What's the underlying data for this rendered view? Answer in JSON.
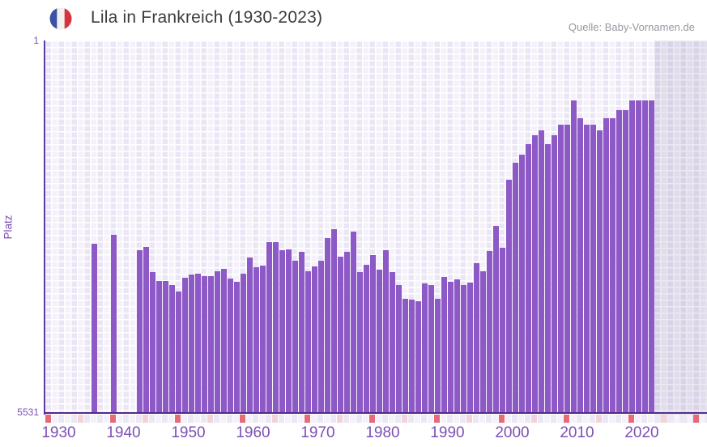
{
  "header": {
    "title": "Lila in Frankreich (1930-2023)",
    "source": "Quelle: Baby-Vornamen.de",
    "flag_icon": "french-flag-icon",
    "flag_colors": [
      "#3b51a3",
      "#f2f1ef",
      "#d6333f"
    ]
  },
  "chart_data": {
    "type": "bar",
    "title": "Lila in Frankreich (1930-2023)",
    "xlabel": "",
    "ylabel": "Platz",
    "legend": "none",
    "grid": "on",
    "yaxis": {
      "scale": "log",
      "min": 1,
      "max": 5531,
      "inverted": true,
      "tick_top": "1",
      "tick_bottom": "5531"
    },
    "xaxis": {
      "range_start": 1930,
      "range_end": 2031,
      "tick_years": [
        1930,
        1940,
        1950,
        1960,
        1970,
        1980,
        1990,
        2000,
        2010,
        2020
      ],
      "half_decade_marks": [
        1935,
        1945,
        1955,
        1965,
        1975,
        1985,
        1995,
        2005,
        2015,
        2025
      ]
    },
    "colors": {
      "bar": "#8d59c6",
      "axis": "#5b3a9e",
      "tick_label": "#7c50b4",
      "decade_cell": "#e56b77",
      "half_decade_cell": "#f2d2db",
      "cell_even": "#ece7f5",
      "cell_odd": "#f4f1fa"
    },
    "points": [
      {
        "year": 1937,
        "rank": 111
      },
      {
        "year": 1940,
        "rank": 89
      },
      {
        "year": 1944,
        "rank": 129
      },
      {
        "year": 1945,
        "rank": 118
      },
      {
        "year": 1946,
        "rank": 214
      },
      {
        "year": 1947,
        "rank": 260
      },
      {
        "year": 1948,
        "rank": 260
      },
      {
        "year": 1949,
        "rank": 285
      },
      {
        "year": 1950,
        "rank": 333
      },
      {
        "year": 1951,
        "rank": 244
      },
      {
        "year": 1952,
        "rank": 226
      },
      {
        "year": 1953,
        "rank": 219
      },
      {
        "year": 1954,
        "rank": 233
      },
      {
        "year": 1955,
        "rank": 233
      },
      {
        "year": 1956,
        "rank": 208
      },
      {
        "year": 1957,
        "rank": 198
      },
      {
        "year": 1958,
        "rank": 247
      },
      {
        "year": 1959,
        "rank": 264
      },
      {
        "year": 1960,
        "rank": 219
      },
      {
        "year": 1961,
        "rank": 152
      },
      {
        "year": 1962,
        "rank": 190
      },
      {
        "year": 1963,
        "rank": 182
      },
      {
        "year": 1964,
        "rank": 107
      },
      {
        "year": 1965,
        "rank": 107
      },
      {
        "year": 1966,
        "rank": 129
      },
      {
        "year": 1967,
        "rank": 126
      },
      {
        "year": 1968,
        "rank": 162
      },
      {
        "year": 1969,
        "rank": 132
      },
      {
        "year": 1970,
        "rank": 208
      },
      {
        "year": 1971,
        "rank": 187
      },
      {
        "year": 1972,
        "rank": 164
      },
      {
        "year": 1973,
        "rank": 97
      },
      {
        "year": 1974,
        "rank": 79
      },
      {
        "year": 1975,
        "rank": 148
      },
      {
        "year": 1976,
        "rank": 132
      },
      {
        "year": 1977,
        "rank": 84
      },
      {
        "year": 1978,
        "rank": 212
      },
      {
        "year": 1979,
        "rank": 178
      },
      {
        "year": 1980,
        "rank": 143
      },
      {
        "year": 1981,
        "rank": 200
      },
      {
        "year": 1982,
        "rank": 128
      },
      {
        "year": 1983,
        "rank": 212
      },
      {
        "year": 1984,
        "rank": 288
      },
      {
        "year": 1985,
        "rank": 392
      },
      {
        "year": 1986,
        "rank": 399
      },
      {
        "year": 1987,
        "rank": 414
      },
      {
        "year": 1988,
        "rank": 276
      },
      {
        "year": 1989,
        "rank": 285
      },
      {
        "year": 1990,
        "rank": 396
      },
      {
        "year": 1991,
        "rank": 239
      },
      {
        "year": 1992,
        "rank": 267
      },
      {
        "year": 1993,
        "rank": 250
      },
      {
        "year": 1994,
        "rank": 288
      },
      {
        "year": 1995,
        "rank": 269
      },
      {
        "year": 1996,
        "rank": 174
      },
      {
        "year": 1997,
        "rank": 208
      },
      {
        "year": 1998,
        "rank": 130
      },
      {
        "year": 1999,
        "rank": 73
      },
      {
        "year": 2000,
        "rank": 121
      },
      {
        "year": 2001,
        "rank": 25
      },
      {
        "year": 2002,
        "rank": 17
      },
      {
        "year": 2003,
        "rank": 14
      },
      {
        "year": 2004,
        "rank": 11
      },
      {
        "year": 2005,
        "rank": 9
      },
      {
        "year": 2006,
        "rank": 8
      },
      {
        "year": 2007,
        "rank": 11
      },
      {
        "year": 2008,
        "rank": 9
      },
      {
        "year": 2009,
        "rank": 7
      },
      {
        "year": 2010,
        "rank": 7
      },
      {
        "year": 2011,
        "rank": 4
      },
      {
        "year": 2012,
        "rank": 6
      },
      {
        "year": 2013,
        "rank": 7
      },
      {
        "year": 2014,
        "rank": 7
      },
      {
        "year": 2015,
        "rank": 8
      },
      {
        "year": 2016,
        "rank": 6
      },
      {
        "year": 2017,
        "rank": 6
      },
      {
        "year": 2018,
        "rank": 5
      },
      {
        "year": 2019,
        "rank": 5
      },
      {
        "year": 2020,
        "rank": 4
      },
      {
        "year": 2021,
        "rank": 4
      },
      {
        "year": 2022,
        "rank": 4
      },
      {
        "year": 2023,
        "rank": 4
      }
    ]
  }
}
